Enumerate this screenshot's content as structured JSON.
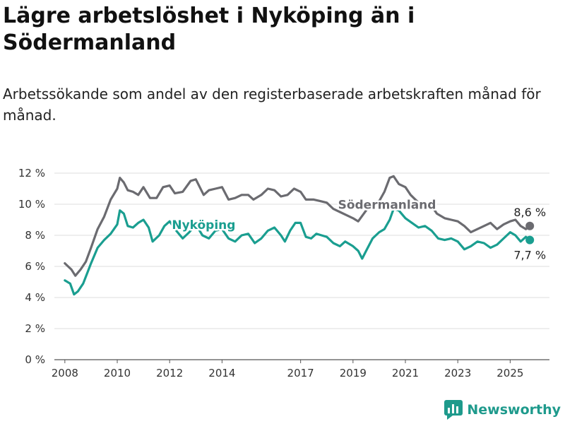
{
  "title": "Lägre arbetslöshet i Nyköping än i Södermanland",
  "subtitle": "Arbetssökande som andel av den registerbaserade arbetskraften månad för månad.",
  "brand": {
    "name": "Newsworthy",
    "color": "#1e9a8c"
  },
  "chart_data": {
    "type": "line",
    "title": "Lägre arbetslöshet i Nyköping än i Södermanland",
    "subtitle": "Arbetssökande som andel av den registerbaserade arbetskraften månad för månad.",
    "xlabel": "",
    "ylabel": "",
    "x_ticks": [
      "2008",
      "2010",
      "2012",
      "2014",
      "2017",
      "2019",
      "2021",
      "2023",
      "2025"
    ],
    "y_ticks": [
      "0 %",
      "2 %",
      "4 %",
      "6 %",
      "8 %",
      "10 %",
      "12 %"
    ],
    "ylim": [
      0,
      12
    ],
    "xlim": [
      2007.6,
      2026.5
    ],
    "grid": true,
    "series": [
      {
        "name": "Södermanland",
        "color": "#6b6b70",
        "end_label": "8,6 %",
        "points": [
          [
            2008.0,
            6.2
          ],
          [
            2008.25,
            5.8
          ],
          [
            2008.4,
            5.4
          ],
          [
            2008.6,
            5.8
          ],
          [
            2008.8,
            6.3
          ],
          [
            2009.0,
            7.2
          ],
          [
            2009.25,
            8.4
          ],
          [
            2009.5,
            9.2
          ],
          [
            2009.75,
            10.3
          ],
          [
            2010.0,
            11.0
          ],
          [
            2010.1,
            11.7
          ],
          [
            2010.25,
            11.4
          ],
          [
            2010.4,
            10.9
          ],
          [
            2010.6,
            10.8
          ],
          [
            2010.8,
            10.6
          ],
          [
            2011.0,
            11.1
          ],
          [
            2011.25,
            10.4
          ],
          [
            2011.5,
            10.4
          ],
          [
            2011.75,
            11.1
          ],
          [
            2012.0,
            11.2
          ],
          [
            2012.2,
            10.7
          ],
          [
            2012.5,
            10.8
          ],
          [
            2012.8,
            11.5
          ],
          [
            2013.0,
            11.6
          ],
          [
            2013.3,
            10.6
          ],
          [
            2013.5,
            10.9
          ],
          [
            2013.75,
            11.0
          ],
          [
            2014.0,
            11.1
          ],
          [
            2014.25,
            10.3
          ],
          [
            2014.5,
            10.4
          ],
          [
            2014.75,
            10.6
          ],
          [
            2015.0,
            10.6
          ],
          [
            2015.2,
            10.3
          ],
          [
            2015.5,
            10.6
          ],
          [
            2015.75,
            11.0
          ],
          [
            2016.0,
            10.9
          ],
          [
            2016.25,
            10.5
          ],
          [
            2016.5,
            10.6
          ],
          [
            2016.75,
            11.0
          ],
          [
            2017.0,
            10.8
          ],
          [
            2017.2,
            10.3
          ],
          [
            2017.5,
            10.3
          ],
          [
            2017.75,
            10.2
          ],
          [
            2018.0,
            10.1
          ],
          [
            2018.25,
            9.7
          ],
          [
            2018.5,
            9.5
          ],
          [
            2018.75,
            9.3
          ],
          [
            2019.0,
            9.1
          ],
          [
            2019.2,
            8.9
          ],
          [
            2019.5,
            9.6
          ],
          [
            2019.75,
            10.1
          ],
          [
            2020.0,
            10.2
          ],
          [
            2020.2,
            10.8
          ],
          [
            2020.4,
            11.7
          ],
          [
            2020.55,
            11.8
          ],
          [
            2020.75,
            11.3
          ],
          [
            2021.0,
            11.1
          ],
          [
            2021.2,
            10.6
          ],
          [
            2021.5,
            10.1
          ],
          [
            2021.75,
            9.8
          ],
          [
            2022.0,
            9.9
          ],
          [
            2022.2,
            9.4
          ],
          [
            2022.5,
            9.1
          ],
          [
            2022.75,
            9.0
          ],
          [
            2023.0,
            8.9
          ],
          [
            2023.25,
            8.6
          ],
          [
            2023.5,
            8.2
          ],
          [
            2023.75,
            8.4
          ],
          [
            2024.0,
            8.6
          ],
          [
            2024.25,
            8.8
          ],
          [
            2024.5,
            8.4
          ],
          [
            2024.75,
            8.7
          ],
          [
            2025.0,
            8.9
          ],
          [
            2025.2,
            9.0
          ],
          [
            2025.4,
            8.6
          ],
          [
            2025.6,
            8.4
          ],
          [
            2025.75,
            8.6
          ]
        ]
      },
      {
        "name": "Nyköping",
        "color": "#1a9e90",
        "end_label": "7,7 %",
        "points": [
          [
            2008.0,
            5.1
          ],
          [
            2008.2,
            4.9
          ],
          [
            2008.35,
            4.2
          ],
          [
            2008.5,
            4.4
          ],
          [
            2008.7,
            4.9
          ],
          [
            2009.0,
            6.2
          ],
          [
            2009.25,
            7.2
          ],
          [
            2009.5,
            7.7
          ],
          [
            2009.75,
            8.1
          ],
          [
            2010.0,
            8.7
          ],
          [
            2010.1,
            9.6
          ],
          [
            2010.25,
            9.4
          ],
          [
            2010.4,
            8.6
          ],
          [
            2010.6,
            8.5
          ],
          [
            2010.8,
            8.8
          ],
          [
            2011.0,
            9.0
          ],
          [
            2011.2,
            8.5
          ],
          [
            2011.35,
            7.6
          ],
          [
            2011.6,
            8.0
          ],
          [
            2011.8,
            8.6
          ],
          [
            2012.0,
            8.9
          ],
          [
            2012.25,
            8.3
          ],
          [
            2012.5,
            7.8
          ],
          [
            2012.75,
            8.2
          ],
          [
            2013.0,
            8.7
          ],
          [
            2013.25,
            8.0
          ],
          [
            2013.5,
            7.8
          ],
          [
            2013.75,
            8.3
          ],
          [
            2014.0,
            8.4
          ],
          [
            2014.25,
            7.8
          ],
          [
            2014.5,
            7.6
          ],
          [
            2014.75,
            8.0
          ],
          [
            2015.0,
            8.1
          ],
          [
            2015.25,
            7.5
          ],
          [
            2015.5,
            7.8
          ],
          [
            2015.75,
            8.3
          ],
          [
            2016.0,
            8.5
          ],
          [
            2016.25,
            8.0
          ],
          [
            2016.4,
            7.6
          ],
          [
            2016.6,
            8.3
          ],
          [
            2016.8,
            8.8
          ],
          [
            2017.0,
            8.8
          ],
          [
            2017.2,
            7.9
          ],
          [
            2017.4,
            7.8
          ],
          [
            2017.6,
            8.1
          ],
          [
            2017.8,
            8.0
          ],
          [
            2018.0,
            7.9
          ],
          [
            2018.25,
            7.5
          ],
          [
            2018.5,
            7.3
          ],
          [
            2018.7,
            7.6
          ],
          [
            2019.0,
            7.3
          ],
          [
            2019.2,
            7.0
          ],
          [
            2019.35,
            6.5
          ],
          [
            2019.5,
            7.0
          ],
          [
            2019.75,
            7.8
          ],
          [
            2020.0,
            8.2
          ],
          [
            2020.2,
            8.4
          ],
          [
            2020.4,
            9.0
          ],
          [
            2020.55,
            9.7
          ],
          [
            2020.75,
            9.6
          ],
          [
            2021.0,
            9.1
          ],
          [
            2021.25,
            8.8
          ],
          [
            2021.5,
            8.5
          ],
          [
            2021.75,
            8.6
          ],
          [
            2022.0,
            8.3
          ],
          [
            2022.25,
            7.8
          ],
          [
            2022.5,
            7.7
          ],
          [
            2022.75,
            7.8
          ],
          [
            2023.0,
            7.6
          ],
          [
            2023.25,
            7.1
          ],
          [
            2023.5,
            7.3
          ],
          [
            2023.75,
            7.6
          ],
          [
            2024.0,
            7.5
          ],
          [
            2024.25,
            7.2
          ],
          [
            2024.5,
            7.4
          ],
          [
            2024.75,
            7.8
          ],
          [
            2025.0,
            8.2
          ],
          [
            2025.2,
            8.0
          ],
          [
            2025.4,
            7.6
          ],
          [
            2025.6,
            7.9
          ],
          [
            2025.75,
            7.7
          ]
        ]
      }
    ]
  }
}
